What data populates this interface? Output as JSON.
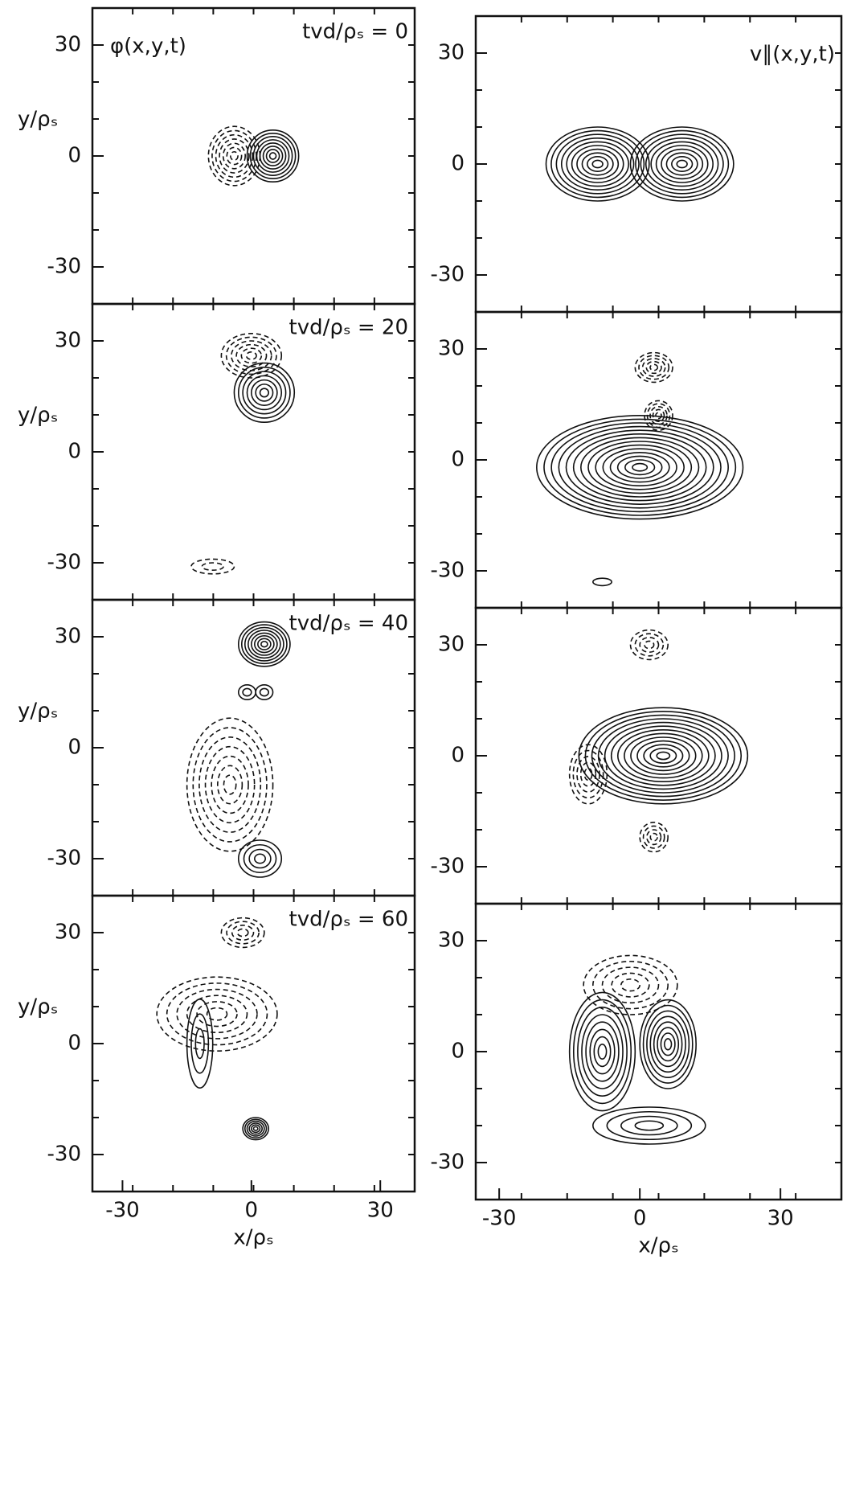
{
  "chart_data": [
    {
      "type": "contour",
      "title": "φ(x,y,t)",
      "annotation": "tvd/ρₛ = 0",
      "ylabel": "y/ρₛ",
      "xlim": [
        -37,
        38
      ],
      "ylim": [
        -40,
        40
      ],
      "yticks": [
        -30,
        0,
        30
      ]
    },
    {
      "type": "contour",
      "title": "v∥(x,y,t)",
      "xlim": [
        -35,
        43
      ],
      "ylim": [
        -40,
        40
      ],
      "yticks": [
        -30,
        0,
        30
      ]
    },
    {
      "type": "contour",
      "annotation": "tvd/ρₛ = 20",
      "ylabel": "y/ρₛ",
      "xlim": [
        -37,
        38
      ],
      "ylim": [
        -40,
        40
      ],
      "yticks": [
        -30,
        0,
        30
      ]
    },
    {
      "type": "contour",
      "xlim": [
        -35,
        43
      ],
      "ylim": [
        -40,
        40
      ],
      "yticks": [
        -30,
        0,
        30
      ]
    },
    {
      "type": "contour",
      "annotation": "tvd/ρₛ = 40",
      "ylabel": "y/ρₛ",
      "xlim": [
        -37,
        38
      ],
      "ylim": [
        -40,
        40
      ],
      "yticks": [
        -30,
        0,
        30
      ]
    },
    {
      "type": "contour",
      "xlim": [
        -35,
        43
      ],
      "ylim": [
        -40,
        40
      ],
      "yticks": [
        -30,
        0,
        30
      ]
    },
    {
      "type": "contour",
      "annotation": "tvd/ρₛ = 60",
      "ylabel": "y/ρₛ",
      "xlabel": "x/ρₛ",
      "xlim": [
        -37,
        38
      ],
      "ylim": [
        -40,
        40
      ],
      "yticks": [
        -30,
        0,
        30
      ],
      "xticks": [
        -30,
        0,
        30
      ]
    },
    {
      "type": "contour",
      "xlabel": "x/ρₛ",
      "xlim": [
        -35,
        43
      ],
      "ylim": [
        -40,
        40
      ],
      "yticks": [
        -30,
        0,
        30
      ],
      "xticks": [
        -30,
        0,
        30
      ]
    }
  ]
}
